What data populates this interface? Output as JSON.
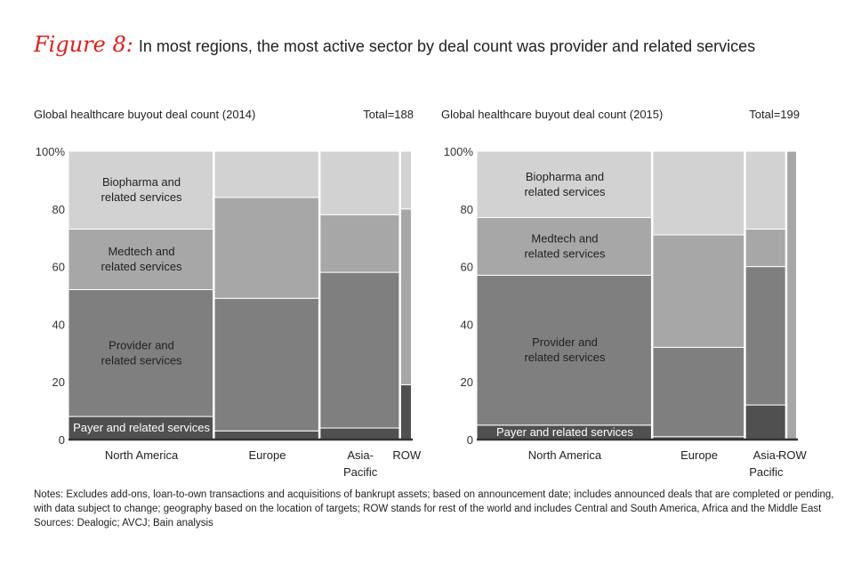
{
  "figure": {
    "label": "Figure 8:",
    "title": "In most regions, the most active sector by deal count was provider and related services"
  },
  "colors": {
    "payer": "#505050",
    "provider": "#7f7f80",
    "medtech": "#a7a7a8",
    "biopharma": "#d2d2d3",
    "axis_text": "#333333"
  },
  "chart_data": [
    {
      "type": "marimekko",
      "title": "Global healthcare buyout deal count (2014)",
      "total_label": "Total=188",
      "y_ticks": [
        "100%",
        "80",
        "60",
        "40",
        "20",
        "0"
      ],
      "ylim": [
        0,
        100
      ],
      "sectors": [
        "Payer and related services",
        "Provider and related services",
        "Medtech and related services",
        "Biopharma and related services"
      ],
      "regions": [
        {
          "name": "North America",
          "label_lines": [
            "North America"
          ],
          "width_share": 43.5,
          "values": [
            8,
            44,
            21,
            27
          ]
        },
        {
          "name": "Europe",
          "label_lines": [
            "Europe"
          ],
          "width_share": 31.5,
          "values": [
            3,
            46,
            35,
            16
          ]
        },
        {
          "name": "Asia-Pacific",
          "label_lines": [
            "Asia-",
            "Pacific"
          ],
          "width_share": 24.0,
          "values": [
            4,
            54,
            20,
            22
          ]
        },
        {
          "name": "ROW",
          "label_lines": [
            "ROW"
          ],
          "width_share": 3.6,
          "values": [
            19,
            0,
            61,
            20
          ]
        }
      ],
      "segment_labels": [
        {
          "region": 0,
          "sector": 0,
          "lines": [
            "Payer and related services"
          ]
        },
        {
          "region": 0,
          "sector": 1,
          "lines": [
            "Provider and",
            "related services"
          ]
        },
        {
          "region": 0,
          "sector": 2,
          "lines": [
            "Medtech and",
            "related services"
          ]
        },
        {
          "region": 0,
          "sector": 3,
          "lines": [
            "Biopharma and",
            "related services"
          ]
        }
      ]
    },
    {
      "type": "marimekko",
      "title": "Global healthcare buyout deal count (2015)",
      "total_label": "Total=199",
      "y_ticks": [
        "100%",
        "80",
        "60",
        "40",
        "20",
        "0"
      ],
      "ylim": [
        0,
        100
      ],
      "sectors": [
        "Payer and related services",
        "Provider and related services",
        "Medtech and related services",
        "Biopharma and related services"
      ],
      "regions": [
        {
          "name": "North America",
          "label_lines": [
            "North America"
          ],
          "width_share": 56.2,
          "values": [
            5,
            52,
            20,
            23
          ]
        },
        {
          "name": "Europe",
          "label_lines": [
            "Europe"
          ],
          "width_share": 29.6,
          "values": [
            1,
            31,
            39,
            29
          ]
        },
        {
          "name": "Asia-Pacific",
          "label_lines": [
            "Asia-",
            "Pacific"
          ],
          "width_share": 13.2,
          "values": [
            12,
            48,
            13,
            27
          ]
        },
        {
          "name": "ROW",
          "label_lines": [
            "ROW"
          ],
          "width_share": 3.5,
          "values": [
            0,
            0,
            100,
            0
          ]
        }
      ],
      "segment_labels": [
        {
          "region": 0,
          "sector": 0,
          "lines": [
            "Payer and related services"
          ]
        },
        {
          "region": 0,
          "sector": 1,
          "lines": [
            "Provider and",
            "related services"
          ]
        },
        {
          "region": 0,
          "sector": 2,
          "lines": [
            "Medtech and",
            "related services"
          ]
        },
        {
          "region": 0,
          "sector": 3,
          "lines": [
            "Biopharma and",
            "related services"
          ]
        }
      ]
    }
  ],
  "notes": {
    "line1": "Notes: Excludes add-ons, loan-to-own transactions and acquisitions of bankrupt assets; based on announcement date; includes announced deals that are completed or pending,",
    "line2": "with data subject to change; geography based on the location of targets; ROW stands for rest of the world and includes Central and South America, Africa and the Middle East",
    "sources": "Sources: Dealogic; AVCJ; Bain analysis"
  }
}
